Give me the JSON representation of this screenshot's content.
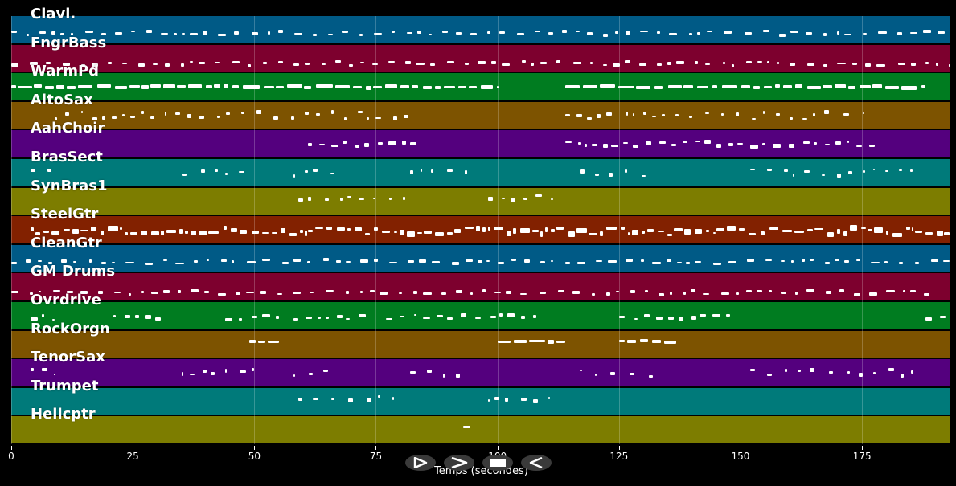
{
  "tracks": [
    {
      "name": "Clavi.",
      "color": "#005a86",
      "kind": "dense",
      "seed": 1,
      "lane": 0.62,
      "ranges": [
        [
          0,
          193
        ]
      ]
    },
    {
      "name": "FngrBass",
      "color": "#7d002e",
      "kind": "dense",
      "seed": 2,
      "lane": 0.7,
      "ranges": [
        [
          0,
          193
        ]
      ]
    },
    {
      "name": "WarmPd",
      "color": "#007c20",
      "kind": "long",
      "seed": 3,
      "lane": 0.5,
      "ranges": [
        [
          0,
          100
        ],
        [
          114,
          188
        ]
      ]
    },
    {
      "name": "AltoSax",
      "color": "#7d5300",
      "kind": "sparse",
      "seed": 4,
      "lane": 0.5,
      "ranges": [
        [
          9,
          83
        ],
        [
          114,
          176
        ]
      ]
    },
    {
      "name": "AahChoir",
      "color": "#54007e",
      "kind": "medium",
      "seed": 5,
      "lane": 0.5,
      "ranges": [
        [
          61,
          84
        ],
        [
          114,
          178
        ]
      ]
    },
    {
      "name": "BrasSect",
      "color": "#007a7a",
      "kind": "sparse",
      "seed": 6,
      "lane": 0.5,
      "ranges": [
        [
          4,
          9
        ],
        [
          35,
          50
        ],
        [
          58,
          67
        ],
        [
          82,
          94
        ],
        [
          117,
          132
        ],
        [
          152,
          187
        ]
      ]
    },
    {
      "name": "SynBras1",
      "color": "#7d7d00",
      "kind": "sparse",
      "seed": 7,
      "lane": 0.4,
      "ranges": [
        [
          59,
          81
        ],
        [
          98,
          112
        ]
      ]
    },
    {
      "name": "SteelGtr",
      "color": "#822100",
      "kind": "vdense",
      "seed": 8,
      "lane": 0.55,
      "ranges": [
        [
          4,
          193
        ]
      ]
    },
    {
      "name": "CleanGtr",
      "color": "#005a86",
      "kind": "dense",
      "seed": 9,
      "lane": 0.62,
      "ranges": [
        [
          0,
          193
        ]
      ]
    },
    {
      "name": "GM Drums",
      "color": "#7d002e",
      "kind": "dense",
      "seed": 10,
      "lane": 0.7,
      "ranges": [
        [
          0,
          190
        ]
      ]
    },
    {
      "name": "Ovrdrive",
      "color": "#007c20",
      "kind": "medium",
      "seed": 11,
      "lane": 0.55,
      "ranges": [
        [
          4,
          9
        ],
        [
          21,
          32
        ],
        [
          44,
          55
        ],
        [
          58,
          74
        ],
        [
          77,
          108
        ],
        [
          125,
          148
        ],
        [
          188,
          193
        ]
      ]
    },
    {
      "name": "RockOrgn",
      "color": "#7d5300",
      "kind": "long",
      "seed": 12,
      "lane": 0.4,
      "ranges": [
        [
          49,
          55
        ],
        [
          100,
          114
        ],
        [
          125,
          137
        ]
      ]
    },
    {
      "name": "TenorSax",
      "color": "#54007e",
      "kind": "sparse",
      "seed": 13,
      "lane": 0.5,
      "ranges": [
        [
          4,
          9
        ],
        [
          35,
          50
        ],
        [
          58,
          67
        ],
        [
          82,
          94
        ],
        [
          117,
          132
        ],
        [
          152,
          187
        ]
      ]
    },
    {
      "name": "Trumpet",
      "color": "#007a7a",
      "kind": "sparse",
      "seed": 14,
      "lane": 0.4,
      "ranges": [
        [
          59,
          81
        ],
        [
          98,
          112
        ]
      ]
    },
    {
      "name": "Helicptr",
      "color": "#7d7d00",
      "kind": "single",
      "seed": 15,
      "lane": 0.4,
      "ranges": [
        [
          93,
          94.5
        ]
      ]
    }
  ],
  "xaxis": {
    "min": 0,
    "max": 193,
    "ticks": [
      0,
      25,
      50,
      75,
      100,
      125,
      150,
      175
    ],
    "tick_labels": [
      "0",
      "25",
      "50",
      "75",
      "100",
      "125",
      "150",
      "175"
    ],
    "label": "Temps (secondes)"
  },
  "controls": [
    {
      "name": "play-button",
      "icon": "play-outline-icon"
    },
    {
      "name": "fast-forward-button",
      "icon": "forward-icon"
    },
    {
      "name": "stop-button",
      "icon": "stop-icon"
    },
    {
      "name": "rewind-button",
      "icon": "rewind-icon"
    }
  ]
}
